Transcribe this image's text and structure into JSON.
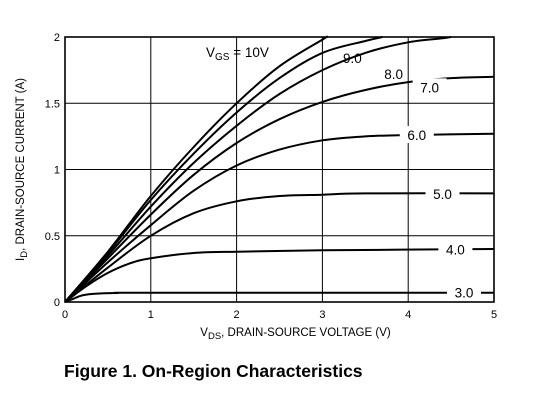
{
  "caption": "Figure 1. On-Region Characteristics",
  "chart_data": {
    "type": "line",
    "xlabel_main": "V",
    "xlabel_sub": "DS",
    "xlabel_rest": ", DRAIN-SOURCE VOLTAGE (V)",
    "ylabel_main": "I",
    "ylabel_sub": "D",
    "ylabel_rest": ", DRAIN-SOURCE CURRENT (A)",
    "xlim": [
      0,
      5
    ],
    "ylim": [
      0,
      2
    ],
    "x_ticks": [
      "0",
      "1",
      "2",
      "3",
      "4",
      "5"
    ],
    "y_ticks": [
      "0",
      "0.5",
      "1",
      "1.5",
      "2"
    ],
    "grid": true,
    "legend_main": "V",
    "legend_sub": "GS",
    "legend_rest": " = 10V",
    "series": [
      {
        "name": "10V",
        "points": [
          [
            0,
            0
          ],
          [
            0.5,
            0.38
          ],
          [
            1,
            0.8
          ],
          [
            1.5,
            1.17
          ],
          [
            2,
            1.5
          ],
          [
            2.5,
            1.78
          ],
          [
            3,
            1.98
          ],
          [
            3.05,
            2.0
          ]
        ]
      },
      {
        "name": "9.0",
        "points": [
          [
            0,
            0
          ],
          [
            0.5,
            0.37
          ],
          [
            1,
            0.77
          ],
          [
            1.5,
            1.12
          ],
          [
            2,
            1.43
          ],
          [
            2.5,
            1.69
          ],
          [
            3,
            1.88
          ],
          [
            3.5,
            1.97
          ],
          [
            3.7,
            2.0
          ]
        ]
      },
      {
        "name": "8.0",
        "points": [
          [
            0,
            0
          ],
          [
            0.5,
            0.35
          ],
          [
            1,
            0.72
          ],
          [
            1.5,
            1.05
          ],
          [
            2,
            1.33
          ],
          [
            2.5,
            1.57
          ],
          [
            3,
            1.75
          ],
          [
            3.5,
            1.88
          ],
          [
            4,
            1.96
          ],
          [
            4.4,
            1.99
          ],
          [
            4.5,
            2.0
          ]
        ]
      },
      {
        "name": "7.0",
        "points": [
          [
            0,
            0
          ],
          [
            0.5,
            0.33
          ],
          [
            1,
            0.66
          ],
          [
            1.5,
            0.96
          ],
          [
            2,
            1.2
          ],
          [
            2.5,
            1.38
          ],
          [
            3,
            1.51
          ],
          [
            3.5,
            1.6
          ],
          [
            4,
            1.66
          ],
          [
            4.5,
            1.69
          ],
          [
            5,
            1.7
          ]
        ]
      },
      {
        "name": "6.0",
        "points": [
          [
            0,
            0
          ],
          [
            0.5,
            0.3
          ],
          [
            1,
            0.58
          ],
          [
            1.5,
            0.84
          ],
          [
            2,
            1.03
          ],
          [
            2.5,
            1.15
          ],
          [
            3,
            1.22
          ],
          [
            3.5,
            1.25
          ],
          [
            4,
            1.26
          ],
          [
            5,
            1.27
          ]
        ]
      },
      {
        "name": "5.0",
        "points": [
          [
            0,
            0
          ],
          [
            0.5,
            0.26
          ],
          [
            1,
            0.5
          ],
          [
            1.5,
            0.67
          ],
          [
            2,
            0.76
          ],
          [
            2.5,
            0.8
          ],
          [
            3,
            0.81
          ],
          [
            3.5,
            0.82
          ],
          [
            5,
            0.82
          ]
        ]
      },
      {
        "name": "4.0",
        "points": [
          [
            0,
            0
          ],
          [
            0.25,
            0.12
          ],
          [
            0.5,
            0.22
          ],
          [
            0.75,
            0.29
          ],
          [
            1,
            0.33
          ],
          [
            1.5,
            0.37
          ],
          [
            2,
            0.38
          ],
          [
            3,
            0.39
          ],
          [
            5,
            0.4
          ]
        ]
      },
      {
        "name": "3.0",
        "points": [
          [
            0,
            0
          ],
          [
            0.1,
            0.025
          ],
          [
            0.2,
            0.05
          ],
          [
            0.35,
            0.063
          ],
          [
            0.6,
            0.068
          ],
          [
            1,
            0.07
          ],
          [
            5,
            0.07
          ]
        ]
      }
    ]
  }
}
